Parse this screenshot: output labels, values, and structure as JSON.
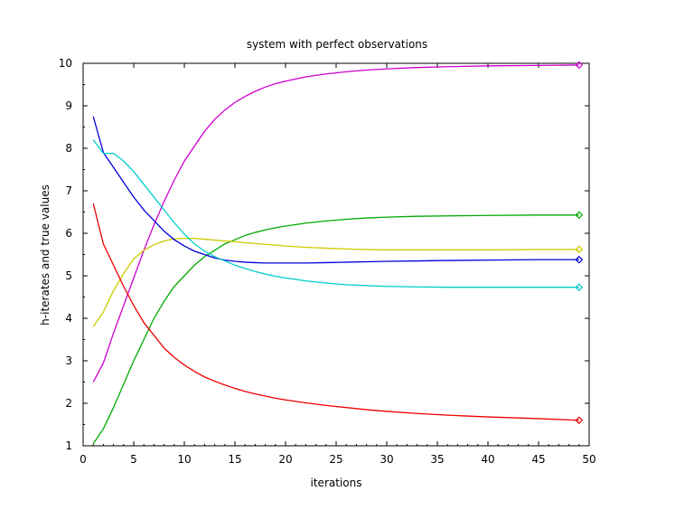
{
  "chart_data": {
    "type": "line",
    "title": "system with perfect observations",
    "xlabel": "iterations",
    "ylabel": "h-iterates and true values",
    "xlim": [
      0,
      50
    ],
    "ylim": [
      1,
      10
    ],
    "xticks": [
      "0",
      "5",
      "10",
      "15",
      "20",
      "25",
      "30",
      "35",
      "40",
      "45",
      "50"
    ],
    "yticks": [
      "1",
      "2",
      "3",
      "4",
      "5",
      "6",
      "7",
      "8",
      "9",
      "10"
    ],
    "grid": false,
    "series": [
      {
        "color": "#cc00cc",
        "x": [
          1,
          2,
          3,
          4,
          5,
          6,
          7,
          8,
          9,
          10,
          11,
          12,
          13,
          14,
          15,
          16,
          17,
          18,
          19,
          20,
          22,
          24,
          26,
          28,
          30,
          33,
          36,
          40,
          45,
          49
        ],
        "y": [
          2.5,
          2.95,
          3.65,
          4.3,
          4.95,
          5.6,
          6.2,
          6.75,
          7.25,
          7.7,
          8.05,
          8.4,
          8.68,
          8.9,
          9.08,
          9.22,
          9.34,
          9.44,
          9.52,
          9.58,
          9.68,
          9.75,
          9.8,
          9.84,
          9.87,
          9.9,
          9.92,
          9.94,
          9.95,
          9.96
        ],
        "true_value": 9.96
      },
      {
        "color": "#00aa00",
        "x": [
          1,
          2,
          3,
          4,
          5,
          6,
          7,
          8,
          9,
          10,
          11,
          12,
          13,
          14,
          15,
          16,
          17,
          18,
          19,
          20,
          22,
          24,
          26,
          28,
          30,
          33,
          36,
          40,
          45,
          49
        ],
        "y": [
          1.05,
          1.4,
          1.9,
          2.45,
          3.0,
          3.5,
          4.0,
          4.4,
          4.75,
          5.0,
          5.25,
          5.45,
          5.6,
          5.75,
          5.85,
          5.95,
          6.02,
          6.08,
          6.13,
          6.17,
          6.24,
          6.29,
          6.33,
          6.36,
          6.38,
          6.4,
          6.41,
          6.42,
          6.43,
          6.43
        ],
        "true_value": 6.43
      },
      {
        "color": "#cccc00",
        "x": [
          1,
          2,
          3,
          4,
          5,
          6,
          7,
          8,
          9,
          10,
          11,
          12,
          13,
          14,
          15,
          16,
          17,
          18,
          19,
          20,
          22,
          24,
          26,
          28,
          30,
          33,
          36,
          40,
          45,
          49
        ],
        "y": [
          3.8,
          4.15,
          4.65,
          5.05,
          5.4,
          5.6,
          5.73,
          5.82,
          5.87,
          5.88,
          5.88,
          5.86,
          5.84,
          5.82,
          5.8,
          5.78,
          5.76,
          5.74,
          5.72,
          5.7,
          5.67,
          5.65,
          5.63,
          5.62,
          5.61,
          5.61,
          5.61,
          5.61,
          5.62,
          5.62
        ],
        "true_value": 5.62
      },
      {
        "color": "#0000dd",
        "x": [
          1,
          2,
          3,
          4,
          5,
          6,
          7,
          8,
          9,
          10,
          11,
          12,
          13,
          14,
          15,
          16,
          17,
          18,
          19,
          20,
          22,
          24,
          26,
          28,
          30,
          33,
          36,
          40,
          45,
          49
        ],
        "y": [
          8.75,
          7.9,
          7.55,
          7.2,
          6.85,
          6.55,
          6.3,
          6.05,
          5.85,
          5.7,
          5.58,
          5.5,
          5.42,
          5.37,
          5.34,
          5.32,
          5.31,
          5.3,
          5.3,
          5.3,
          5.3,
          5.31,
          5.32,
          5.33,
          5.34,
          5.35,
          5.36,
          5.37,
          5.38,
          5.38
        ],
        "true_value": 5.38
      },
      {
        "color": "#00cccc",
        "x": [
          1,
          2,
          3,
          4,
          5,
          6,
          7,
          8,
          9,
          10,
          11,
          12,
          13,
          14,
          15,
          16,
          17,
          18,
          19,
          20,
          22,
          24,
          26,
          28,
          30,
          33,
          36,
          40,
          45,
          49
        ],
        "y": [
          8.2,
          7.88,
          7.88,
          7.7,
          7.45,
          7.15,
          6.85,
          6.55,
          6.25,
          5.98,
          5.75,
          5.58,
          5.45,
          5.35,
          5.25,
          5.17,
          5.1,
          5.04,
          4.99,
          4.95,
          4.88,
          4.83,
          4.79,
          4.77,
          4.75,
          4.74,
          4.73,
          4.73,
          4.73,
          4.73
        ],
        "true_value": 4.73
      },
      {
        "color": "#ee0000",
        "x": [
          1,
          2,
          3,
          4,
          5,
          6,
          7,
          8,
          9,
          10,
          11,
          12,
          13,
          14,
          15,
          16,
          17,
          18,
          19,
          20,
          22,
          24,
          26,
          28,
          30,
          33,
          36,
          40,
          45,
          49
        ],
        "y": [
          6.7,
          5.75,
          5.25,
          4.75,
          4.3,
          3.9,
          3.6,
          3.3,
          3.08,
          2.9,
          2.75,
          2.62,
          2.52,
          2.43,
          2.35,
          2.28,
          2.22,
          2.17,
          2.12,
          2.08,
          2.01,
          1.95,
          1.9,
          1.85,
          1.81,
          1.76,
          1.72,
          1.68,
          1.64,
          1.6
        ],
        "true_value": 1.6
      }
    ]
  }
}
